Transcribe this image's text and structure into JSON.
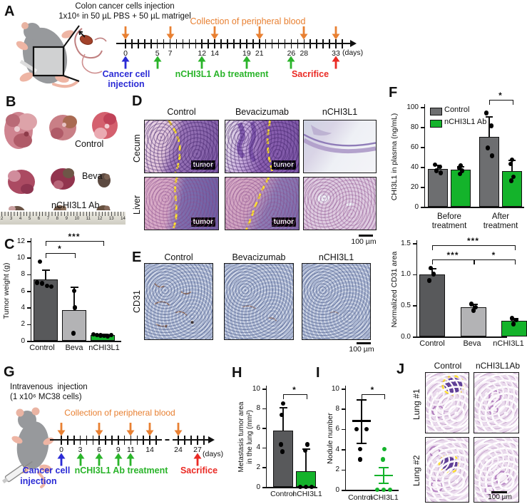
{
  "colors": {
    "control_bar": "#58595b",
    "beva_bar": "#b3b3b5",
    "treated_green": "#14b32b",
    "blood_arrow_orange": "#e88032",
    "treatment_green": "#2ab42a",
    "injection_blue": "#2b2bd5",
    "sacrifice_red": "#ea2a24",
    "boundary_yellow": "#ffe22e"
  },
  "panelA": {
    "label": "A",
    "title_lines": [
      "Colon cancer cells injection",
      "1x10⁶ in 50 µL PBS + 50 µL matrigel"
    ],
    "collection_label": "Collection of peripheral blood",
    "day_labels": [
      "0",
      "5",
      "7",
      "12",
      "14",
      "19",
      "21",
      "26",
      "28",
      "33"
    ],
    "days_unit": "(days)",
    "blood_collection_days": [
      0,
      7,
      14,
      21,
      28,
      33
    ],
    "treatment_days": [
      5,
      12,
      19,
      26
    ],
    "injection_day": 0,
    "sacrifice_day": 33,
    "injection_label_lines": [
      "Cancer cell",
      "injection"
    ],
    "treatment_label": "nCHI3L1 Ab treatment",
    "sacrifice_label": "Sacrifice"
  },
  "panelB": {
    "label": "B",
    "row_labels": [
      "Control",
      "Beva",
      "nCHI3L1 Ab"
    ],
    "ruler_numbers": [
      "2",
      "3",
      "4",
      "5",
      "6",
      "7",
      "8",
      "9",
      "10",
      "11",
      "12",
      "13",
      "14"
    ]
  },
  "panelD": {
    "label": "D",
    "headers": [
      "Control",
      "Bevacizumab",
      "nCHI3L1"
    ],
    "row_labels": [
      "Cecum",
      "Liver"
    ],
    "tumor_label": "tumor",
    "scale_label": "100 µm"
  },
  "panelE": {
    "label": "E",
    "headers": [
      "Control",
      "Bevacizumab",
      "nCHI3L1"
    ],
    "row_label": "CD31",
    "scale_label": "100 µm"
  },
  "panelG": {
    "label": "G",
    "title_lines": [
      "Intravenous  injection",
      "(1 x10⁶ MC38 cells)"
    ],
    "collection_label": "Collection of peripheral blood",
    "day_labels": [
      "0",
      "3",
      "6",
      "9",
      "11",
      "14",
      "24",
      "27"
    ],
    "days_unit": "(days)",
    "blood_collection_days": [
      0,
      6,
      11,
      14,
      24
    ],
    "treatment_days": [
      3,
      6,
      9,
      11
    ],
    "injection_day": 0,
    "sacrifice_day": 27,
    "injection_label_lines": [
      "Cancer cell",
      "injection"
    ],
    "treatment_label": "nCHI3L1 Ab treatment",
    "sacrifice_label": "Sacrifice"
  },
  "panelJ": {
    "label": "J",
    "headers": [
      "Control",
      "nCHI3L1Ab"
    ],
    "row_labels": [
      "Lung #1",
      "Lung #2"
    ],
    "scale_label": "100 µm"
  },
  "chart_data": [
    {
      "id": "tumor_weight",
      "panel": "C",
      "type": "bar",
      "ylabel": "Tumor weight (g)",
      "ylim": [
        0,
        12
      ],
      "yticks": [
        0,
        2,
        4,
        6,
        8,
        10,
        12
      ],
      "categories": [
        "Control",
        "Beva",
        "nCHI3L1"
      ],
      "values": [
        7.4,
        3.7,
        0.65
      ],
      "errors_lo": [
        6.2,
        0.9,
        0.45
      ],
      "errors_hi": [
        8.6,
        6.5,
        0.85
      ],
      "points": [
        [
          9.5,
          7.0,
          6.9,
          6.6,
          6.5
        ],
        [
          6.0,
          4.0,
          0.9
        ],
        [
          0.75,
          0.7,
          0.65,
          0.6,
          0.55,
          0.7
        ]
      ],
      "bar_colors": [
        "#58595b",
        "#b3b3b5",
        "#14b32b"
      ],
      "significance": [
        {
          "from": 0,
          "to": 1,
          "label": "*"
        },
        {
          "from": 0,
          "to": 2,
          "label": "***"
        }
      ]
    },
    {
      "id": "chi3l1_plasma",
      "panel": "F",
      "type": "grouped_bar",
      "ylabel": "CHI3L1 in plasma (ng/mL)",
      "ylim": [
        0,
        100
      ],
      "yticks": [
        0,
        20,
        40,
        60,
        80,
        100
      ],
      "categories": [
        "Before treatment",
        "After treatment"
      ],
      "group_label_lines": [
        [
          "Before",
          "treatment"
        ],
        [
          "After",
          "treatment"
        ]
      ],
      "series": [
        {
          "name": "Control",
          "color": "#6d6e70",
          "values": [
            38,
            70
          ],
          "errors_lo": [
            34,
            51
          ],
          "errors_hi": [
            42,
            91
          ],
          "points": [
            [
              42,
              40,
              36,
              34
            ],
            [
              94,
              81,
              59,
              51
            ]
          ]
        },
        {
          "name": "nCHI3L1 Ab",
          "color": "#14b32b",
          "values": [
            37,
            36
          ],
          "errors_lo": [
            33,
            26
          ],
          "errors_hi": [
            41,
            47
          ],
          "points": [
            [
              41,
              39,
              36,
              33
            ],
            [
              47,
              43,
              30,
              26
            ]
          ]
        }
      ],
      "legend_position": "top-left",
      "significance": [
        {
          "group": 1,
          "label": "*"
        }
      ]
    },
    {
      "id": "normalized_cd31",
      "panel": "F-bottom",
      "type": "bar",
      "ylabel": "Normalized CD31 area",
      "ylim": [
        0,
        1.5
      ],
      "yticks": [
        "0.0",
        "0.5",
        "1.0",
        "1.5"
      ],
      "categories": [
        "Control",
        "Beva",
        "nCHI3L1"
      ],
      "values": [
        1.0,
        0.47,
        0.25
      ],
      "errors_lo": [
        0.9,
        0.41,
        0.19
      ],
      "errors_hi": [
        1.1,
        0.53,
        0.3
      ],
      "points": [
        [
          1.1,
          1.0,
          0.9
        ],
        [
          0.52,
          0.47,
          0.42
        ],
        [
          0.29,
          0.26,
          0.2
        ]
      ],
      "bar_colors": [
        "#58595b",
        "#b3b3b5",
        "#14b32b"
      ],
      "significance": [
        {
          "from": 0,
          "to": 1,
          "label": "***"
        },
        {
          "from": 0,
          "to": 2,
          "label": "***"
        },
        {
          "from": 1,
          "to": 2,
          "label": "*"
        }
      ]
    },
    {
      "id": "metastasis_area",
      "panel": "H",
      "type": "bar",
      "ylabel": "Metastasis tumor area in the lung (mm²)",
      "ylabel_lines": [
        "Metastasis tumor area",
        "in the lung (mm²)"
      ],
      "ylim": [
        0,
        10
      ],
      "yticks": [
        0,
        2,
        4,
        6,
        8,
        10
      ],
      "categories": [
        "Control",
        "nCHI3L1"
      ],
      "values": [
        5.7,
        1.6
      ],
      "errors_lo": [
        3.5,
        0
      ],
      "errors_hi": [
        8.1,
        3.9
      ],
      "points": [
        [
          8.5,
          7.3,
          4.3,
          3.6
        ],
        [
          4.3,
          3.7,
          0,
          0,
          0
        ]
      ],
      "bar_colors": [
        "#58595b",
        "#14b32b"
      ],
      "significance": [
        {
          "from": 0,
          "to": 1,
          "label": "*"
        }
      ]
    },
    {
      "id": "nodule_number",
      "panel": "I",
      "type": "scatter",
      "ylabel": "Nodule number",
      "ylim": [
        0,
        10
      ],
      "yticks": [
        0,
        2,
        4,
        6,
        8,
        10
      ],
      "categories": [
        "Control",
        "nCHI3L1"
      ],
      "means": [
        6.8,
        1.4
      ],
      "errors_lo": [
        4.6,
        0.6
      ],
      "errors_hi": [
        8.9,
        2.2
      ],
      "points": [
        [
          6,
          6,
          4,
          3
        ],
        [
          4,
          3,
          0,
          0,
          0
        ]
      ],
      "point_colors": [
        "#000000",
        "#14b32b"
      ],
      "significance": [
        {
          "from": 0,
          "to": 1,
          "label": "*"
        }
      ]
    }
  ]
}
